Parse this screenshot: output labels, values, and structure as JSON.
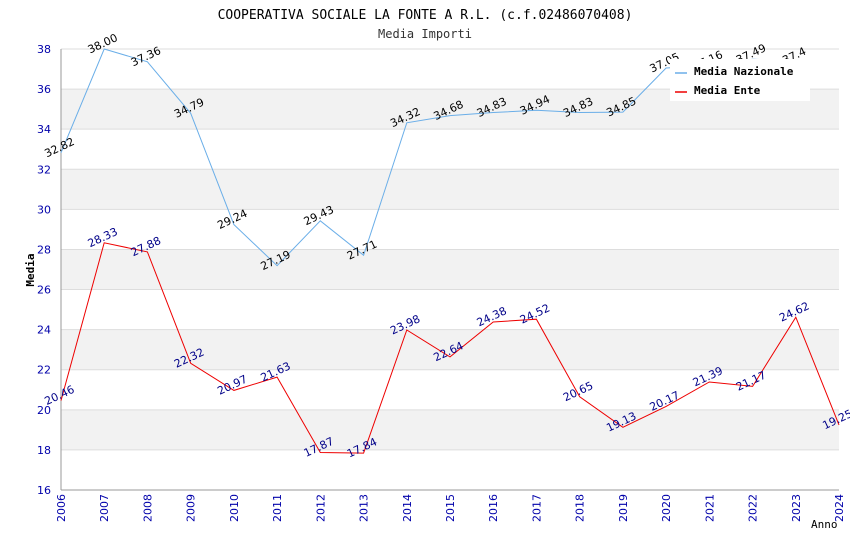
{
  "chart_data": {
    "type": "line",
    "title": "COOPERATIVA SOCIALE LA FONTE A R.L. (c.f.02486070408)",
    "subtitle": "Media Importi",
    "xlabel": "Anno",
    "ylabel": "Media",
    "ylim": [
      16,
      38
    ],
    "yticks": [
      16,
      18,
      20,
      22,
      24,
      26,
      28,
      30,
      32,
      34,
      36,
      38
    ],
    "categories": [
      "2006",
      "2007",
      "2008",
      "2009",
      "2010",
      "2011",
      "2012",
      "2013",
      "2014",
      "2015",
      "2016",
      "2017",
      "2018",
      "2019",
      "2020",
      "2021",
      "2022",
      "2023",
      "2024"
    ],
    "series": [
      {
        "name": "Media Nazionale",
        "color": "#6aaee8",
        "values": [
          32.82,
          38.0,
          37.36,
          34.79,
          29.24,
          27.19,
          29.43,
          27.71,
          34.32,
          34.68,
          34.83,
          34.94,
          34.83,
          34.85,
          37.05,
          37.16,
          37.49,
          37.4,
          null
        ],
        "labels": [
          "32.82",
          "38.00",
          "37.36",
          "34.79",
          "29.24",
          "27.19",
          "29.43",
          "27.71",
          "34.32",
          "34.68",
          "34.83",
          "34.94",
          "34.83",
          "34.85",
          "37.05",
          "37.16",
          "37.49",
          "37.4",
          ""
        ]
      },
      {
        "name": "Media Ente",
        "color": "#ee0000",
        "values": [
          20.46,
          28.33,
          27.88,
          22.32,
          20.97,
          21.63,
          17.87,
          17.84,
          23.98,
          22.64,
          24.38,
          24.52,
          20.65,
          19.13,
          20.17,
          21.39,
          21.17,
          24.62,
          19.25
        ],
        "labels": [
          "20.46",
          "28.33",
          "27.88",
          "22.32",
          "20.97",
          "21.63",
          "17.87",
          "17.84",
          "23.98",
          "22.64",
          "24.38",
          "24.52",
          "20.65",
          "19.13",
          "20.17",
          "21.39",
          "21.17",
          "24.62",
          "19.25"
        ]
      }
    ],
    "legend_position": "top-right",
    "grid": true
  }
}
